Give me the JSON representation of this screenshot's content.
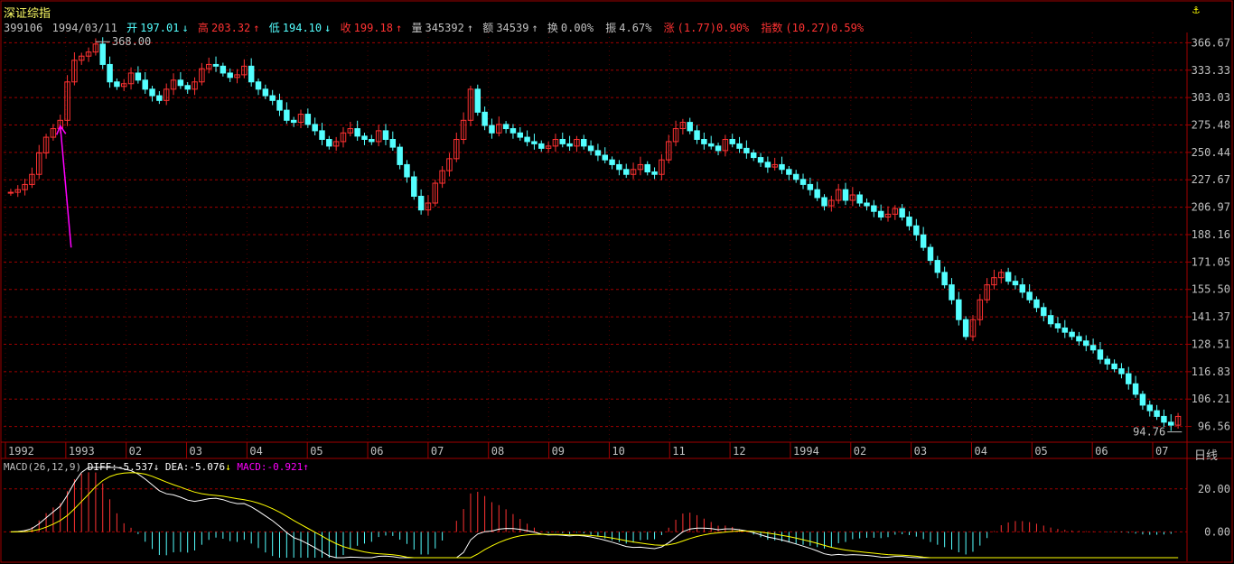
{
  "header": {
    "title": "深证综指",
    "code": "399106",
    "date": "1994/03/11",
    "open_label": "开",
    "open": "197.01",
    "high_label": "高",
    "high": "203.32",
    "low_label": "低",
    "low": "194.10",
    "close_label": "收",
    "close": "199.18",
    "vol_label": "量",
    "vol": "345392",
    "amt_label": "额",
    "amt": "34539",
    "turnover_label": "换",
    "turnover": "0.00%",
    "amplitude_label": "振",
    "amplitude": "4.67%",
    "change_label": "涨",
    "change": "(1.77)0.90%",
    "index_label": "指数",
    "index_change": "(10.27)0.59%",
    "period_label": "日线",
    "scroll_icon": "anchor-icon"
  },
  "macd": {
    "label": "MACD(26,12,9)",
    "diff_label": "DIFF:",
    "diff": "-5.537",
    "dea_label": "DEA:",
    "dea": "-5.076",
    "macd_label": "MACD:",
    "macd": "-0.921"
  },
  "colors": {
    "up": "#ff3232",
    "down": "#54ffff",
    "grid": "#a00000",
    "diff": "#ffffff",
    "dea": "#ffff00",
    "macd_label": "#ff00ff",
    "arrow": "#ff00ff"
  },
  "chart_data": [
    {
      "type": "candlestick",
      "title": "",
      "y_ticks": [
        "366.67",
        "333.33",
        "303.03",
        "275.48",
        "250.44",
        "227.67",
        "206.97",
        "188.16",
        "171.05",
        "155.50",
        "141.37",
        "128.51",
        "116.83",
        "106.21",
        "96.56"
      ],
      "y_tick_values": [
        366.67,
        333.33,
        303.03,
        275.48,
        250.44,
        227.67,
        206.97,
        188.16,
        171.05,
        155.5,
        141.37,
        128.51,
        116.83,
        106.21,
        96.56
      ],
      "ylim": [
        92,
        380
      ],
      "scale": "log",
      "x_labels": [
        "1992",
        "1993",
        "02",
        "03",
        "04",
        "05",
        "06",
        "07",
        "08",
        "09",
        "10",
        "11",
        "12",
        "1994",
        "02",
        "03",
        "04",
        "05",
        "06",
        "07"
      ],
      "annotations": [
        {
          "text": "368.00",
          "value": 368.0,
          "kind": "max"
        },
        {
          "text": "94.76",
          "value": 94.76,
          "kind": "min"
        }
      ],
      "closes": [
        218,
        220,
        224,
        232,
        250,
        264,
        272,
        280,
        320,
        345,
        350,
        355,
        365,
        340,
        320,
        315,
        318,
        330,
        322,
        312,
        305,
        300,
        312,
        322,
        316,
        312,
        320,
        335,
        340,
        338,
        330,
        325,
        328,
        338,
        320,
        312,
        305,
        300,
        290,
        280,
        278,
        286,
        276,
        270,
        262,
        256,
        260,
        268,
        272,
        265,
        262,
        260,
        270,
        262,
        255,
        240,
        230,
        215,
        205,
        210,
        225,
        235,
        245,
        262,
        280,
        312,
        288,
        275,
        268,
        276,
        272,
        268,
        264,
        260,
        258,
        254,
        256,
        262,
        258,
        256,
        262,
        256,
        252,
        248,
        244,
        240,
        236,
        232,
        236,
        240,
        234,
        232,
        244,
        260,
        272,
        278,
        270,
        262,
        258,
        256,
        252,
        262,
        258,
        254,
        250,
        246,
        242,
        238,
        240,
        236,
        232,
        228,
        224,
        220,
        214,
        208,
        212,
        220,
        212,
        216,
        210,
        208,
        204,
        200,
        202,
        206,
        200,
        194,
        188,
        180,
        172,
        165,
        158,
        150,
        140,
        132,
        140,
        150,
        158,
        162,
        165,
        160,
        158,
        154,
        150,
        146,
        142,
        138,
        136,
        134,
        132,
        130,
        128,
        126,
        122,
        120,
        118,
        116,
        112,
        108,
        104,
        102,
        100,
        98,
        97,
        100
      ]
    },
    {
      "type": "macd",
      "y_ticks": [
        "20.00",
        "0.00"
      ],
      "y_tick_values": [
        20,
        0
      ],
      "ylim": [
        -12,
        30
      ]
    }
  ]
}
